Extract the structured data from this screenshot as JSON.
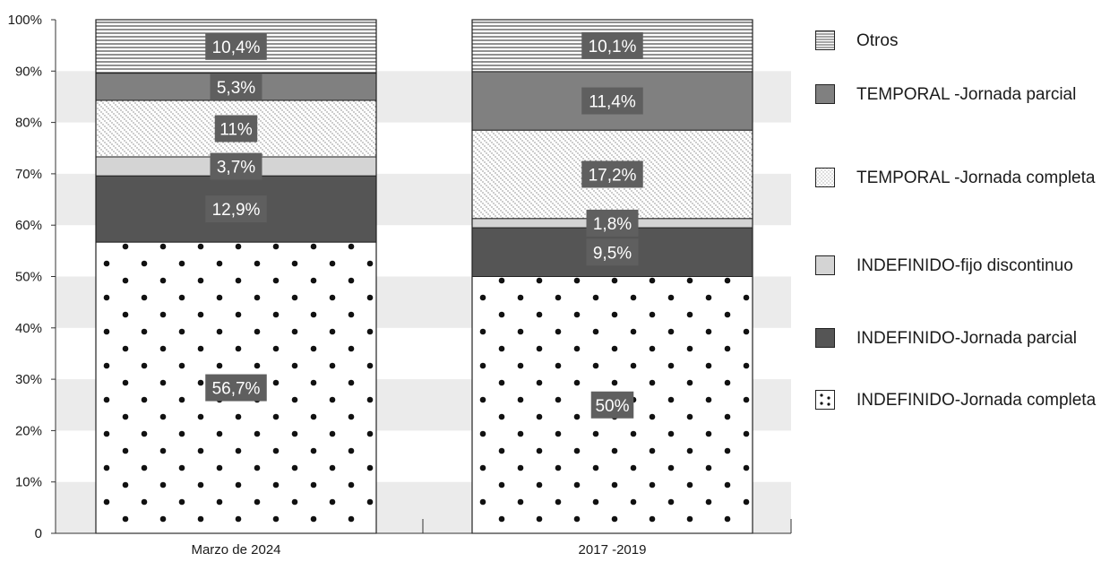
{
  "chart_data": {
    "type": "bar",
    "stacked": true,
    "percent": true,
    "categories": [
      "Marzo de 2024",
      "2017 -2019"
    ],
    "series": [
      {
        "name": "INDEFINIDO-Jornada completa",
        "values": [
          56.7,
          50.0
        ],
        "labels": [
          "56,7%",
          "50%"
        ],
        "pattern": "dots",
        "color": "#ffffff"
      },
      {
        "name": "INDEFINIDO-Jornada parcial",
        "values": [
          12.9,
          9.5
        ],
        "labels": [
          "12,9%",
          "9,5%"
        ],
        "pattern": "solid",
        "color": "#555555"
      },
      {
        "name": "INDEFINIDO-fijo discontinuo",
        "values": [
          3.7,
          1.8
        ],
        "labels": [
          "3,7%",
          "1,8%"
        ],
        "pattern": "solid",
        "color": "#d4d4d4"
      },
      {
        "name": "TEMPORAL -Jornada completa",
        "values": [
          11.0,
          17.2
        ],
        "labels": [
          "11%",
          "17,2%"
        ],
        "pattern": "diagonal",
        "color": "#ffffff"
      },
      {
        "name": "TEMPORAL -Jornada parcial",
        "values": [
          5.3,
          11.4
        ],
        "labels": [
          "5,3%",
          "11,4%"
        ],
        "pattern": "solid",
        "color": "#808080"
      },
      {
        "name": "Otros",
        "values": [
          10.4,
          10.1
        ],
        "labels": [
          "10,4%",
          "10,1%"
        ],
        "pattern": "horizontal",
        "color": "#ffffff"
      }
    ],
    "y_ticks": [
      "0",
      "10%",
      "20%",
      "30%",
      "40%",
      "50%",
      "60%",
      "70%",
      "80%",
      "90%",
      "100%"
    ],
    "ylim": [
      0,
      100
    ],
    "legend_position": "right",
    "grid": "alternating horizontal bands",
    "label_box_color": "#5f5f5f"
  },
  "legend": {
    "items": [
      {
        "label": "Otros",
        "pattern": "horizontal"
      },
      {
        "label": "TEMPORAL -Jornada parcial",
        "pattern": "solid-mid"
      },
      {
        "label": "TEMPORAL -Jornada completa",
        "pattern": "diagonal"
      },
      {
        "label": "INDEFINIDO-fijo discontinuo",
        "pattern": "solid-light"
      },
      {
        "label": "INDEFINIDO-Jornada parcial",
        "pattern": "solid-dark"
      },
      {
        "label": "INDEFINIDO-Jornada completa",
        "pattern": "dots"
      }
    ]
  }
}
